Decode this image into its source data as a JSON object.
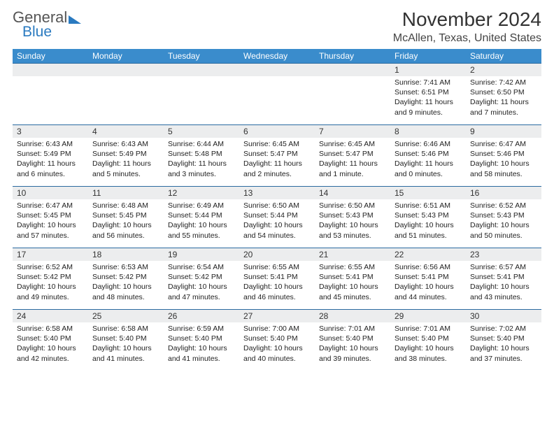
{
  "logo": {
    "text1": "General",
    "text2": "Blue"
  },
  "header": {
    "month_title": "November 2024",
    "location": "McAllen, Texas, United States"
  },
  "colors": {
    "header_bg": "#3a8ccc",
    "border": "#2a6aa0",
    "daynum_bg": "#ecedee"
  },
  "columns": [
    "Sunday",
    "Monday",
    "Tuesday",
    "Wednesday",
    "Thursday",
    "Friday",
    "Saturday"
  ],
  "days": {
    "1": {
      "sunrise": "7:41 AM",
      "sunset": "6:51 PM",
      "daylight": "11 hours and 9 minutes."
    },
    "2": {
      "sunrise": "7:42 AM",
      "sunset": "6:50 PM",
      "daylight": "11 hours and 7 minutes."
    },
    "3": {
      "sunrise": "6:43 AM",
      "sunset": "5:49 PM",
      "daylight": "11 hours and 6 minutes."
    },
    "4": {
      "sunrise": "6:43 AM",
      "sunset": "5:49 PM",
      "daylight": "11 hours and 5 minutes."
    },
    "5": {
      "sunrise": "6:44 AM",
      "sunset": "5:48 PM",
      "daylight": "11 hours and 3 minutes."
    },
    "6": {
      "sunrise": "6:45 AM",
      "sunset": "5:47 PM",
      "daylight": "11 hours and 2 minutes."
    },
    "7": {
      "sunrise": "6:45 AM",
      "sunset": "5:47 PM",
      "daylight": "11 hours and 1 minute."
    },
    "8": {
      "sunrise": "6:46 AM",
      "sunset": "5:46 PM",
      "daylight": "11 hours and 0 minutes."
    },
    "9": {
      "sunrise": "6:47 AM",
      "sunset": "5:46 PM",
      "daylight": "10 hours and 58 minutes."
    },
    "10": {
      "sunrise": "6:47 AM",
      "sunset": "5:45 PM",
      "daylight": "10 hours and 57 minutes."
    },
    "11": {
      "sunrise": "6:48 AM",
      "sunset": "5:45 PM",
      "daylight": "10 hours and 56 minutes."
    },
    "12": {
      "sunrise": "6:49 AM",
      "sunset": "5:44 PM",
      "daylight": "10 hours and 55 minutes."
    },
    "13": {
      "sunrise": "6:50 AM",
      "sunset": "5:44 PM",
      "daylight": "10 hours and 54 minutes."
    },
    "14": {
      "sunrise": "6:50 AM",
      "sunset": "5:43 PM",
      "daylight": "10 hours and 53 minutes."
    },
    "15": {
      "sunrise": "6:51 AM",
      "sunset": "5:43 PM",
      "daylight": "10 hours and 51 minutes."
    },
    "16": {
      "sunrise": "6:52 AM",
      "sunset": "5:43 PM",
      "daylight": "10 hours and 50 minutes."
    },
    "17": {
      "sunrise": "6:52 AM",
      "sunset": "5:42 PM",
      "daylight": "10 hours and 49 minutes."
    },
    "18": {
      "sunrise": "6:53 AM",
      "sunset": "5:42 PM",
      "daylight": "10 hours and 48 minutes."
    },
    "19": {
      "sunrise": "6:54 AM",
      "sunset": "5:42 PM",
      "daylight": "10 hours and 47 minutes."
    },
    "20": {
      "sunrise": "6:55 AM",
      "sunset": "5:41 PM",
      "daylight": "10 hours and 46 minutes."
    },
    "21": {
      "sunrise": "6:55 AM",
      "sunset": "5:41 PM",
      "daylight": "10 hours and 45 minutes."
    },
    "22": {
      "sunrise": "6:56 AM",
      "sunset": "5:41 PM",
      "daylight": "10 hours and 44 minutes."
    },
    "23": {
      "sunrise": "6:57 AM",
      "sunset": "5:41 PM",
      "daylight": "10 hours and 43 minutes."
    },
    "24": {
      "sunrise": "6:58 AM",
      "sunset": "5:40 PM",
      "daylight": "10 hours and 42 minutes."
    },
    "25": {
      "sunrise": "6:58 AM",
      "sunset": "5:40 PM",
      "daylight": "10 hours and 41 minutes."
    },
    "26": {
      "sunrise": "6:59 AM",
      "sunset": "5:40 PM",
      "daylight": "10 hours and 41 minutes."
    },
    "27": {
      "sunrise": "7:00 AM",
      "sunset": "5:40 PM",
      "daylight": "10 hours and 40 minutes."
    },
    "28": {
      "sunrise": "7:01 AM",
      "sunset": "5:40 PM",
      "daylight": "10 hours and 39 minutes."
    },
    "29": {
      "sunrise": "7:01 AM",
      "sunset": "5:40 PM",
      "daylight": "10 hours and 38 minutes."
    },
    "30": {
      "sunrise": "7:02 AM",
      "sunset": "5:40 PM",
      "daylight": "10 hours and 37 minutes."
    }
  },
  "labels": {
    "sunrise_prefix": "Sunrise: ",
    "sunset_prefix": "Sunset: ",
    "daylight_prefix": "Daylight: "
  },
  "layout": {
    "first_day_column": 5,
    "days_in_month": 30
  }
}
